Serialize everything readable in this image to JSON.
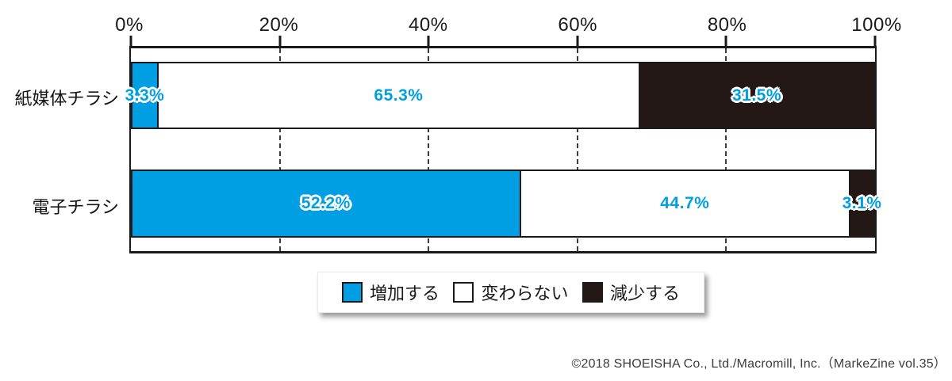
{
  "chart_data": {
    "type": "bar",
    "stacked": true,
    "orientation": "horizontal",
    "categories": [
      "紙媒体チラシ",
      "電子チラシ"
    ],
    "series": [
      {
        "name": "増加する",
        "color": "#009FE3",
        "values": [
          3.3,
          52.2
        ]
      },
      {
        "name": "変わらない",
        "color": "#FFFFFF",
        "values": [
          65.3,
          44.7
        ]
      },
      {
        "name": "減少する",
        "color": "#231815",
        "values": [
          31.5,
          3.1
        ]
      }
    ],
    "x_ticks": [
      "0%",
      "20%",
      "40%",
      "60%",
      "80%",
      "100%"
    ],
    "xlim": [
      0,
      100
    ],
    "grid": "dashed-vertical",
    "legend_position": "bottom-center",
    "value_label_suffix": "%",
    "value_label_color": "#009FE3"
  },
  "footer": {
    "copyright": "©2018 SHOEISHA Co., Ltd./Macromill, Inc.（MarkeZine vol.35）"
  },
  "colors": {
    "increase_blue": "#009FE3",
    "decrease_dark": "#231815",
    "no_change_white": "#FFFFFF",
    "axis_line": "#1A1A1A"
  }
}
